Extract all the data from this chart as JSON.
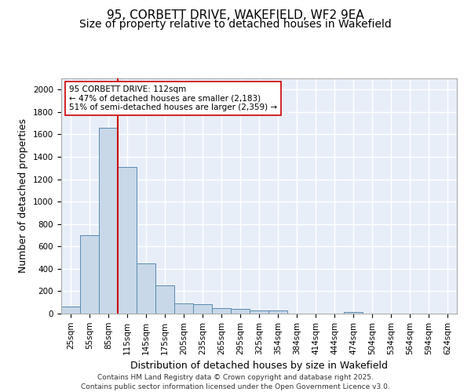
{
  "title1": "95, CORBETT DRIVE, WAKEFIELD, WF2 9EA",
  "title2": "Size of property relative to detached houses in Wakefield",
  "xlabel": "Distribution of detached houses by size in Wakefield",
  "ylabel": "Number of detached properties",
  "categories": [
    "25sqm",
    "55sqm",
    "85sqm",
    "115sqm",
    "145sqm",
    "175sqm",
    "205sqm",
    "235sqm",
    "265sqm",
    "295sqm",
    "325sqm",
    "354sqm",
    "384sqm",
    "414sqm",
    "444sqm",
    "474sqm",
    "504sqm",
    "534sqm",
    "564sqm",
    "594sqm",
    "624sqm"
  ],
  "values": [
    65,
    700,
    1660,
    1310,
    445,
    255,
    90,
    85,
    50,
    40,
    25,
    25,
    0,
    0,
    0,
    15,
    0,
    0,
    0,
    0,
    0
  ],
  "bar_color": "#c8d8e8",
  "bar_edge_color": "#5a8ab0",
  "vline_color": "#cc0000",
  "vline_x_index": 2.5,
  "annotation_text": "95 CORBETT DRIVE: 112sqm\n← 47% of detached houses are smaller (2,183)\n51% of semi-detached houses are larger (2,359) →",
  "annotation_box_color": "#ffffff",
  "annotation_box_edge": "#cc0000",
  "ylim": [
    0,
    2100
  ],
  "yticks": [
    0,
    200,
    400,
    600,
    800,
    1000,
    1200,
    1400,
    1600,
    1800,
    2000
  ],
  "bg_color": "#e8eef8",
  "grid_color": "#ffffff",
  "footer": "Contains HM Land Registry data © Crown copyright and database right 2025.\nContains public sector information licensed under the Open Government Licence v3.0.",
  "title_fontsize": 11,
  "subtitle_fontsize": 10,
  "tick_fontsize": 7.5,
  "ylabel_fontsize": 9,
  "xlabel_fontsize": 9,
  "annot_fontsize": 7.5
}
